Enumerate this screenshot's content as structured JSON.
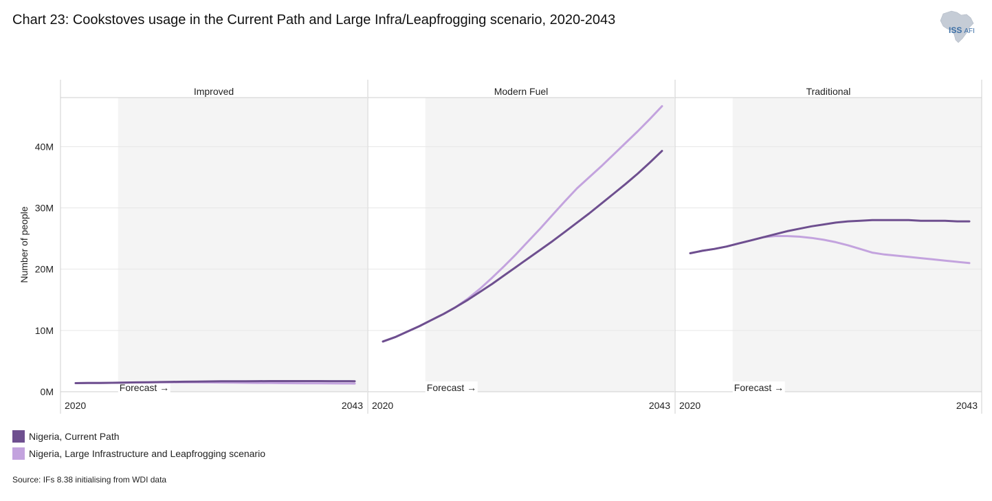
{
  "title": "Chart 23: Cookstoves usage in the Current Path and Large Infra/Leapfrogging scenario, 2020-2043",
  "logo": {
    "text_main": "ISS",
    "text_sub": "AFI",
    "icon": "africa-map-icon"
  },
  "source": "Source: IFs 8.38 initialising from WDI data",
  "colors": {
    "current_path": "#6e4f8f",
    "scenario": "#c3a3de",
    "forecast_band": "#f4f4f4",
    "grid": "#e6e6e6",
    "panel_border": "#cfcfcf"
  },
  "chart_data": {
    "type": "line",
    "ylabel": "Number of people",
    "ylim": [
      0,
      48000000
    ],
    "yticks": [
      0,
      10000000,
      20000000,
      30000000,
      40000000
    ],
    "ytick_labels": [
      "0M",
      "10M",
      "20M",
      "30M",
      "40M"
    ],
    "xlim": [
      2020,
      2043
    ],
    "xtick_labels": [
      "2020",
      "2043"
    ],
    "forecast_start": 2024,
    "forecast_label": "Forecast →",
    "grid": true,
    "legend_position": "bottom-left",
    "x": [
      2020,
      2021,
      2022,
      2023,
      2024,
      2025,
      2026,
      2027,
      2028,
      2029,
      2030,
      2031,
      2032,
      2033,
      2034,
      2035,
      2036,
      2037,
      2038,
      2039,
      2040,
      2041,
      2042,
      2043
    ],
    "series": [
      {
        "name": "Nigeria, Current Path",
        "color_key": "current_path"
      },
      {
        "name": "Nigeria, Large Infrastructure and Leapfrogging scenario",
        "color_key": "scenario"
      }
    ],
    "panels": [
      {
        "title": "Improved",
        "values": [
          [
            1400000,
            1420000,
            1440000,
            1460000,
            1490000,
            1520000,
            1550000,
            1580000,
            1610000,
            1640000,
            1660000,
            1680000,
            1700000,
            1710000,
            1720000,
            1730000,
            1740000,
            1740000,
            1740000,
            1740000,
            1740000,
            1730000,
            1730000,
            1720000
          ],
          [
            1400000,
            1420000,
            1440000,
            1460000,
            1490000,
            1510000,
            1530000,
            1540000,
            1550000,
            1550000,
            1540000,
            1520000,
            1500000,
            1480000,
            1460000,
            1440000,
            1420000,
            1400000,
            1390000,
            1380000,
            1370000,
            1360000,
            1350000,
            1340000
          ]
        ]
      },
      {
        "title": "Modern Fuel",
        "values": [
          [
            8200000,
            8900000,
            9800000,
            10700000,
            11700000,
            12700000,
            13800000,
            15000000,
            16300000,
            17600000,
            19000000,
            20400000,
            21800000,
            23200000,
            24600000,
            26100000,
            27600000,
            29100000,
            30700000,
            32300000,
            33900000,
            35600000,
            37400000,
            39300000
          ],
          [
            8200000,
            8900000,
            9800000,
            10700000,
            11700000,
            12700000,
            13800000,
            15200000,
            16800000,
            18600000,
            20500000,
            22500000,
            24600000,
            26700000,
            28900000,
            31100000,
            33200000,
            35000000,
            36800000,
            38700000,
            40600000,
            42500000,
            44500000,
            46600000
          ]
        ]
      },
      {
        "title": "Traditional",
        "values": [
          [
            22600000,
            23000000,
            23300000,
            23700000,
            24200000,
            24700000,
            25200000,
            25700000,
            26200000,
            26600000,
            27000000,
            27300000,
            27600000,
            27800000,
            27900000,
            28000000,
            28000000,
            28000000,
            28000000,
            27900000,
            27900000,
            27900000,
            27800000,
            27800000
          ],
          [
            22600000,
            23000000,
            23300000,
            23700000,
            24200000,
            24700000,
            25200000,
            25400000,
            25400000,
            25300000,
            25100000,
            24800000,
            24400000,
            23900000,
            23300000,
            22700000,
            22400000,
            22200000,
            22000000,
            21800000,
            21600000,
            21400000,
            21200000,
            21000000
          ]
        ]
      }
    ]
  }
}
